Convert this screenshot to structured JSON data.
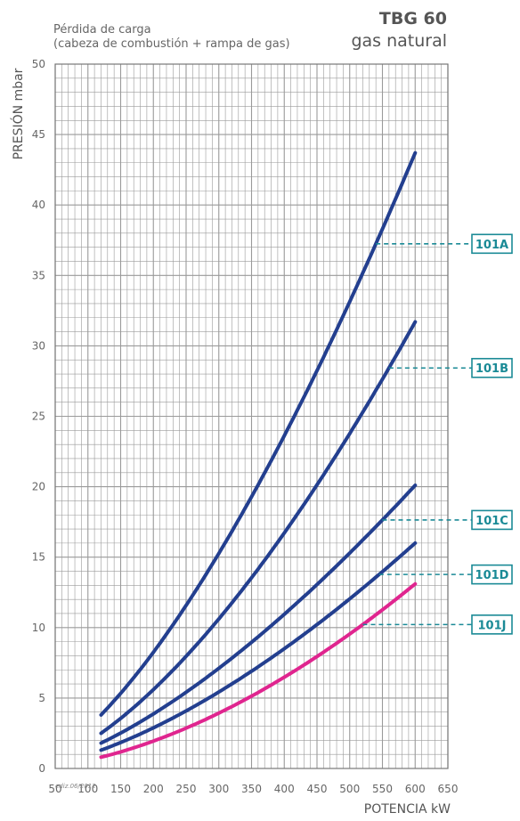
{
  "header": {
    "subtitle_line1": "Pérdida de carga",
    "subtitle_line2": "(cabeza de combustión + rampa de gas)",
    "model": "TBG 60",
    "fuel": "gas natural"
  },
  "footer": {
    "edition": "ediz.06/2012"
  },
  "colors": {
    "series_main": "#233f8f",
    "series_101J": "#e0258f",
    "grid": "#9a9a9a",
    "badge": "#1a8a96"
  },
  "chart_data": {
    "type": "line",
    "xlabel": "POTENCIA kW",
    "ylabel": "PRESIÓN mbar",
    "xlim": [
      50,
      650
    ],
    "ylim": [
      0,
      50
    ],
    "x_ticks": [
      50,
      100,
      150,
      200,
      250,
      300,
      350,
      400,
      450,
      500,
      550,
      600,
      650
    ],
    "y_ticks": [
      0,
      5,
      10,
      15,
      20,
      25,
      30,
      35,
      40,
      45,
      50
    ],
    "x_minor_step": 10,
    "y_minor_step": 1,
    "grid": true,
    "legend": "right, labels linked with dashed leaders",
    "series": [
      {
        "name": "101A",
        "x": [
          120,
          600
        ],
        "y": [
          3.8,
          43.7
        ],
        "marker_x": 540
      },
      {
        "name": "101B",
        "x": [
          120,
          600
        ],
        "y": [
          2.5,
          31.7
        ],
        "marker_x": 560
      },
      {
        "name": "101C",
        "x": [
          120,
          600
        ],
        "y": [
          1.8,
          20.1
        ],
        "marker_x": 550
      },
      {
        "name": "101D",
        "x": [
          120,
          600
        ],
        "y": [
          1.3,
          16.0
        ],
        "marker_x": 545
      },
      {
        "name": "101J",
        "x": [
          120,
          600
        ],
        "y": [
          0.8,
          13.1
        ],
        "marker_x": 520
      }
    ]
  }
}
